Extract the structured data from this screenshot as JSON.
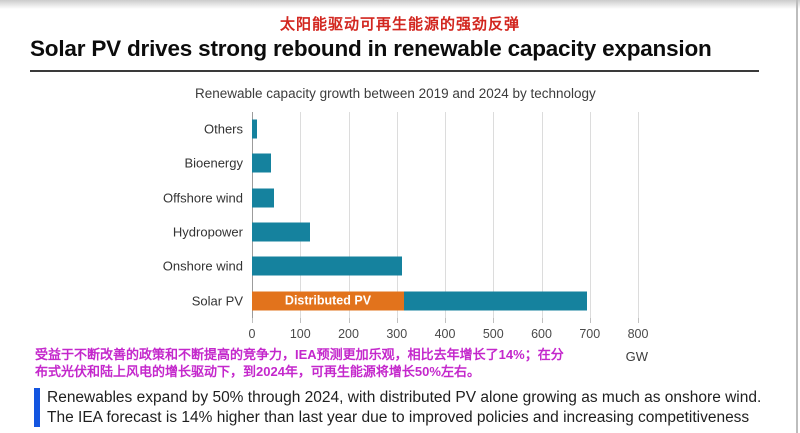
{
  "header": {
    "cn_title": "太阳能驱动可再生能源的强劲反弹",
    "title": "Solar PV drives strong rebound in renewable capacity expansion"
  },
  "chart_data": {
    "type": "bar",
    "orientation": "horizontal",
    "title": "Renewable capacity growth between 2019 and 2024 by technology",
    "unit": "GW",
    "xlim": [
      0,
      800
    ],
    "x_ticks": [
      0,
      100,
      200,
      300,
      400,
      500,
      600,
      700,
      800
    ],
    "grid": true,
    "legend_position": "none",
    "categories": [
      "Others",
      "Bioenergy",
      "Offshore wind",
      "Hydropower",
      "Onshore wind",
      "Solar PV"
    ],
    "totals_gw": [
      10,
      40,
      45,
      120,
      310,
      695
    ],
    "bars": [
      {
        "category": "Others",
        "segments": [
          {
            "value": 10,
            "color_key": "teal"
          }
        ]
      },
      {
        "category": "Bioenergy",
        "segments": [
          {
            "value": 40,
            "color_key": "teal"
          }
        ]
      },
      {
        "category": "Offshore wind",
        "segments": [
          {
            "value": 45,
            "color_key": "teal"
          }
        ]
      },
      {
        "category": "Hydropower",
        "segments": [
          {
            "value": 120,
            "color_key": "teal"
          }
        ]
      },
      {
        "category": "Onshore wind",
        "segments": [
          {
            "value": 310,
            "color_key": "teal"
          }
        ]
      },
      {
        "category": "Solar PV",
        "segments": [
          {
            "value": 315,
            "color_key": "orange",
            "label": "Distributed PV"
          },
          {
            "value": 380,
            "color_key": "teal"
          }
        ]
      }
    ]
  },
  "footnote_cn": {
    "lines": [
      "受益于不断改善的政策和不断提高的竞争力，IEA预测更加乐观，相比去年增长了14%；在分",
      "布式光伏和陆上风电的增长驱动下，到2024年，可再生能源将增长50%左右。"
    ]
  },
  "callout": {
    "text": "Renewables expand by 50% through 2024, with distributed PV alone growing as much as onshore wind. The IEA forecast is 14% higher than last year due to improved policies and increasing competitiveness"
  },
  "colors": {
    "teal": "#15829E",
    "orange": "#E2731C",
    "title_red": "#D2261F",
    "footnote_magenta": "#C428CC",
    "callout_blue": "#1355E0",
    "gridline": "#DCDCDC",
    "axis": "#9C9C9C"
  }
}
